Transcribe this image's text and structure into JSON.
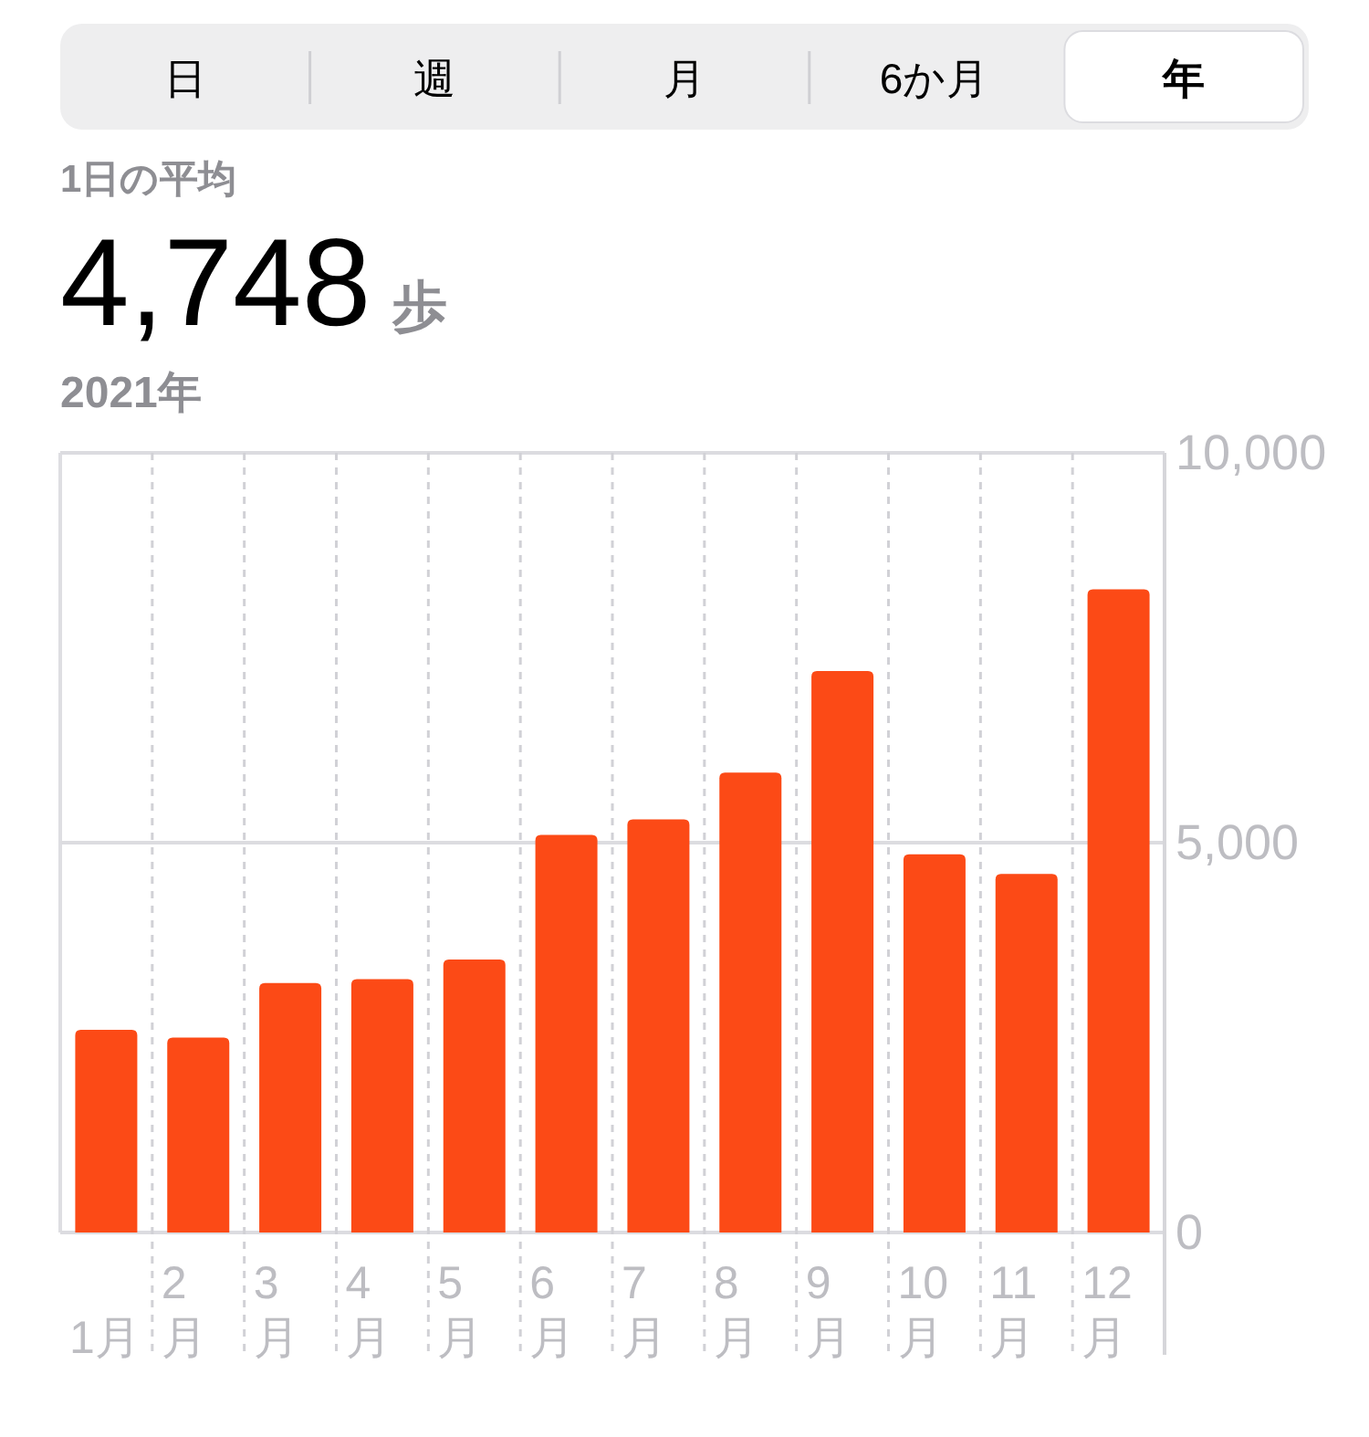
{
  "chart_data": {
    "type": "bar",
    "annotations": [
      "日",
      "週",
      "月",
      "6か月",
      "年",
      "1日の平均",
      "4,748",
      "歩",
      "2021年"
    ],
    "categories": [
      "1月",
      "2\n月",
      "3\n月",
      "4\n月",
      "5\n月",
      "6\n月",
      "7\n月",
      "8\n月",
      "9\n月",
      "10\n月",
      "11\n月",
      "12\n月"
    ],
    "values": [
      2600,
      2500,
      3200,
      3250,
      3500,
      5100,
      5300,
      5900,
      7200,
      4850,
      4600,
      8250
    ],
    "color": "#fc4a16",
    "ylim": [
      0,
      10000
    ],
    "yticks": [
      0,
      {
        "value": 5000,
        "label": "5,000"
      },
      {
        "value": 10000,
        "label": "10,000"
      }
    ],
    "ref_lines": [
      {
        "axis": "y",
        "value": 5000,
        "color": "#dcdce0"
      }
    ]
  }
}
